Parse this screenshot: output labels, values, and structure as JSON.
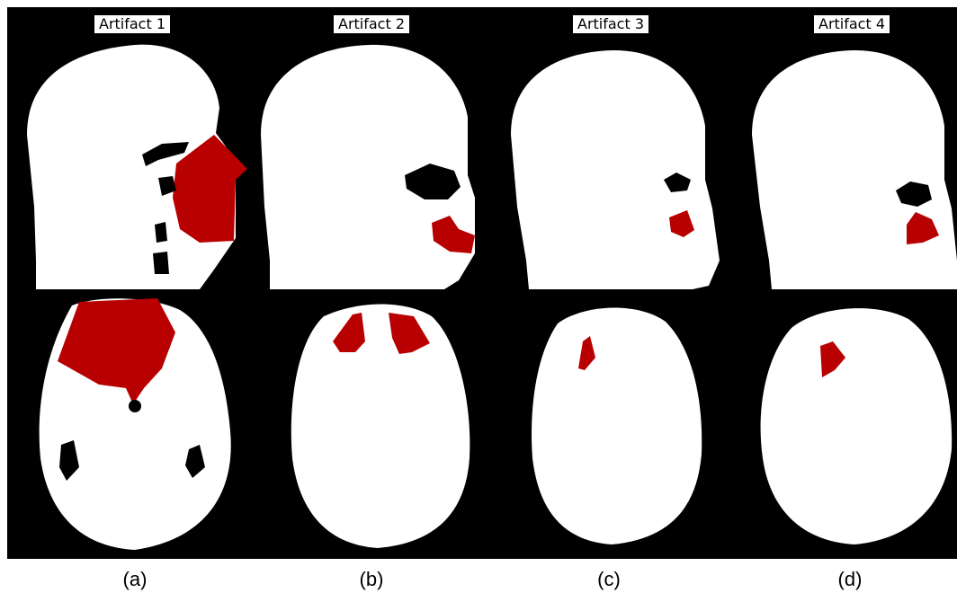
{
  "colors": {
    "background": "#000000",
    "tissue": "#ffffff",
    "artifact": "#b80000"
  },
  "panels": [
    {
      "label": "Artifact 1",
      "caption": "(a)"
    },
    {
      "label": "Artifact 2",
      "caption": "(b)"
    },
    {
      "label": "Artifact 3",
      "caption": "(c)"
    },
    {
      "label": "Artifact 4",
      "caption": "(d)"
    }
  ]
}
